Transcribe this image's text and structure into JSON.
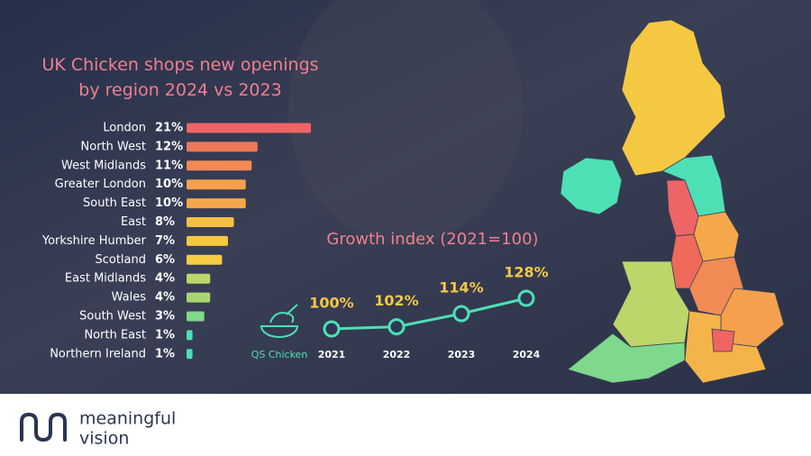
{
  "chart_data": [
    {
      "type": "bar",
      "orientation": "horizontal",
      "title": "UK Chicken shops new openings by region 2024 vs 2023",
      "categories": [
        "London",
        "North West",
        "West Midlands",
        "Greater London",
        "South East",
        "East",
        "Yorkshire Humber",
        "Scotland",
        "East Midlands",
        "Wales",
        "South West",
        "North East",
        "Northern Ireland"
      ],
      "values": [
        21,
        12,
        11,
        10,
        10,
        8,
        7,
        6,
        4,
        4,
        3,
        1,
        1
      ],
      "value_labels": [
        "21%",
        "12%",
        "11%",
        "10%",
        "10%",
        "8%",
        "7%",
        "6%",
        "4%",
        "4%",
        "3%",
        "1%",
        "1%"
      ],
      "colors": [
        "#ef6464",
        "#f0765a",
        "#f28a55",
        "#f4a04c",
        "#f5a84a",
        "#f5c044",
        "#f5c842",
        "#f5cc42",
        "#bcd66a",
        "#a8d670",
        "#7ed98c",
        "#4ee0b5",
        "#4ee0b5"
      ]
    },
    {
      "type": "line",
      "title": "Growth index (2021=100)",
      "categories": [
        "2021",
        "2022",
        "2023",
        "2024"
      ],
      "series": [
        {
          "name": "QS Chicken",
          "color": "#4ee0b5",
          "values": [
            100,
            102,
            114,
            128
          ],
          "value_labels": [
            "100%",
            "102%",
            "114%",
            "128%"
          ]
        }
      ]
    }
  ],
  "brand": [
    "meaningful",
    "vision"
  ]
}
